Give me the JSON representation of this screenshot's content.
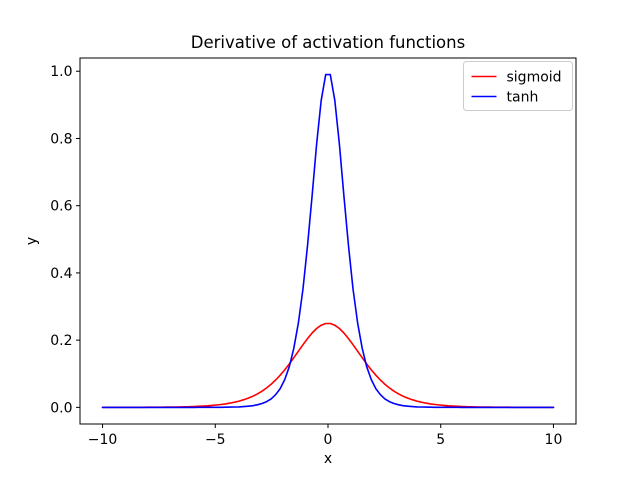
{
  "chart_data": {
    "type": "line",
    "title": "Derivative of activation functions",
    "xlabel": "x",
    "ylabel": "y",
    "xlim": [
      -11,
      11
    ],
    "ylim": [
      -0.0495,
      1.0394
    ],
    "grid": false,
    "legend_position": "upper right",
    "x_ticks": [
      {
        "value": -10,
        "label": "−10"
      },
      {
        "value": -5,
        "label": "−5"
      },
      {
        "value": 0,
        "label": "0"
      },
      {
        "value": 5,
        "label": "5"
      },
      {
        "value": 10,
        "label": "10"
      }
    ],
    "y_ticks": [
      {
        "value": 0.0,
        "label": "0.0"
      },
      {
        "value": 0.2,
        "label": "0.2"
      },
      {
        "value": 0.4,
        "label": "0.4"
      },
      {
        "value": 0.6,
        "label": "0.6"
      },
      {
        "value": 0.8,
        "label": "0.8"
      },
      {
        "value": 1.0,
        "label": "1.0"
      }
    ],
    "x": [
      -10,
      -9.798,
      -9.596,
      -9.394,
      -9.192,
      -8.99,
      -8.788,
      -8.586,
      -8.384,
      -8.182,
      -7.98,
      -7.778,
      -7.576,
      -7.374,
      -7.172,
      -6.97,
      -6.768,
      -6.566,
      -6.364,
      -6.162,
      -5.96,
      -5.758,
      -5.556,
      -5.354,
      -5.152,
      -4.949,
      -4.747,
      -4.545,
      -4.343,
      -4.141,
      -3.939,
      -3.737,
      -3.535,
      -3.333,
      -3.131,
      -2.929,
      -2.727,
      -2.525,
      -2.323,
      -2.121,
      -1.919,
      -1.717,
      -1.515,
      -1.313,
      -1.111,
      -0.909,
      -0.707,
      -0.505,
      -0.303,
      -0.101,
      0.101,
      0.303,
      0.505,
      0.707,
      0.909,
      1.111,
      1.313,
      1.515,
      1.717,
      1.919,
      2.121,
      2.323,
      2.525,
      2.727,
      2.929,
      3.131,
      3.333,
      3.535,
      3.737,
      3.939,
      4.141,
      4.343,
      4.545,
      4.747,
      4.949,
      5.152,
      5.354,
      5.556,
      5.758,
      5.96,
      6.162,
      6.364,
      6.566,
      6.768,
      6.97,
      7.172,
      7.374,
      7.576,
      7.778,
      7.98,
      8.182,
      8.384,
      8.586,
      8.788,
      8.99,
      9.192,
      9.394,
      9.596,
      9.798,
      10
    ],
    "series": [
      {
        "name": "sigmoid",
        "color": "#ff0000",
        "values": [
          5e-05,
          6e-05,
          7e-05,
          8e-05,
          0.0001,
          0.00012,
          0.00015,
          0.00019,
          0.00023,
          0.00028,
          0.00034,
          0.00042,
          0.00051,
          0.00063,
          0.00077,
          0.00094,
          0.00115,
          0.0014,
          0.00172,
          0.0021,
          0.00257,
          0.00314,
          0.00384,
          0.00469,
          0.00572,
          0.00699,
          0.00853,
          0.01039,
          0.01266,
          0.0154,
          0.01873,
          0.02272,
          0.02752,
          0.03325,
          0.04008,
          0.04815,
          0.05761,
          0.06861,
          0.08126,
          0.09559,
          0.11158,
          0.12906,
          0.14772,
          0.16704,
          0.18633,
          0.20471,
          0.22118,
          0.23471,
          0.24435,
          0.24936,
          0.24936,
          0.24435,
          0.23471,
          0.22118,
          0.20471,
          0.18633,
          0.16704,
          0.14772,
          0.12906,
          0.11158,
          0.09559,
          0.08126,
          0.06861,
          0.05761,
          0.04815,
          0.04008,
          0.03325,
          0.02752,
          0.02272,
          0.01873,
          0.0154,
          0.01266,
          0.01039,
          0.00853,
          0.00699,
          0.00572,
          0.00469,
          0.00384,
          0.00314,
          0.00257,
          0.0021,
          0.00172,
          0.0014,
          0.00115,
          0.00094,
          0.00077,
          0.00063,
          0.00051,
          0.00042,
          0.00034,
          0.00028,
          0.00023,
          0.00019,
          0.00015,
          0.00012,
          0.0001,
          8e-05,
          7e-05,
          6e-05,
          5e-05
        ]
      },
      {
        "name": "tanh",
        "color": "#0000ff",
        "values": [
          0,
          0,
          0,
          0,
          0,
          0,
          0,
          0,
          0,
          0,
          0,
          0,
          0,
          0,
          0,
          0,
          1e-05,
          1e-05,
          1e-05,
          2e-05,
          3e-05,
          4e-05,
          6e-05,
          9e-05,
          0.00013,
          0.0002,
          0.0003,
          0.00045,
          0.00067,
          0.00101,
          0.00151,
          0.00227,
          0.00339,
          0.00507,
          0.00759,
          0.01135,
          0.01695,
          0.0253,
          0.03764,
          0.05586,
          0.08252,
          0.12104,
          0.17579,
          0.25167,
          0.35286,
          0.48058,
          0.62929,
          0.78275,
          0.91364,
          0.98987,
          0.98987,
          0.91364,
          0.78275,
          0.62929,
          0.48058,
          0.35286,
          0.25167,
          0.17579,
          0.12104,
          0.08252,
          0.05586,
          0.03764,
          0.0253,
          0.01695,
          0.01135,
          0.00759,
          0.00507,
          0.00339,
          0.00227,
          0.00151,
          0.00101,
          0.00067,
          0.00045,
          0.0003,
          0.0002,
          0.00013,
          9e-05,
          6e-05,
          4e-05,
          3e-05,
          2e-05,
          1e-05,
          1e-05,
          1e-05,
          0,
          0,
          0,
          0,
          0,
          0,
          0,
          0,
          0,
          0,
          0,
          0,
          0,
          0,
          0,
          0
        ]
      }
    ]
  }
}
